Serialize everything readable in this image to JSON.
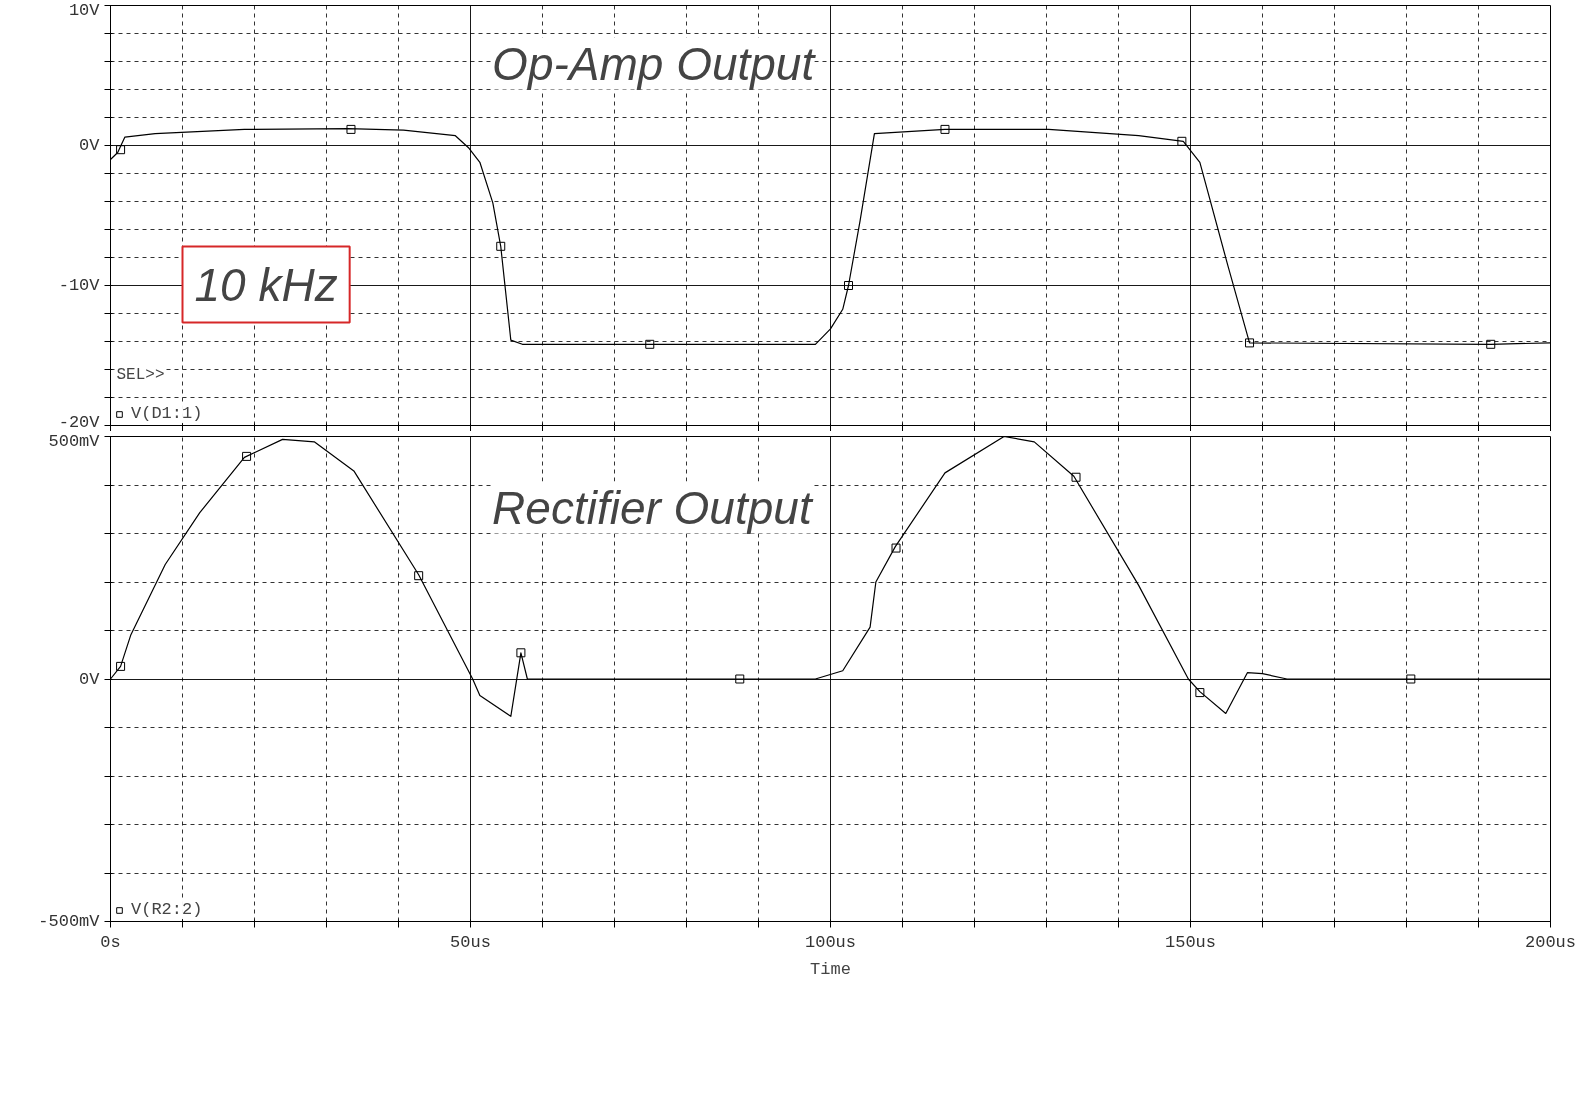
{
  "chart_data": [
    {
      "type": "line",
      "annotations": [
        "Op-Amp Output",
        "10 kHz",
        "SEL>>"
      ],
      "xlim": [
        0,
        200
      ],
      "ylim": [
        -20,
        10
      ],
      "tick_labels": "y",
      "grid": true,
      "legend": "bottom left",
      "xticks": [
        {
          "value": 0,
          "label": null
        },
        {
          "value": 10,
          "label": null
        },
        {
          "value": 20,
          "label": null
        },
        {
          "value": 30,
          "label": null
        },
        {
          "value": 40,
          "label": null
        },
        {
          "value": 50,
          "label": null
        },
        {
          "value": 60,
          "label": null
        },
        {
          "value": 70,
          "label": null
        },
        {
          "value": 80,
          "label": null
        },
        {
          "value": 90,
          "label": null
        },
        {
          "value": 100,
          "label": null
        },
        {
          "value": 110,
          "label": null
        },
        {
          "value": 120,
          "label": null
        },
        {
          "value": 130,
          "label": null
        },
        {
          "value": 140,
          "label": null
        },
        {
          "value": 150,
          "label": null
        },
        {
          "value": 160,
          "label": null
        },
        {
          "value": 170,
          "label": null
        },
        {
          "value": 180,
          "label": null
        },
        {
          "value": 190,
          "label": null
        },
        {
          "value": 200,
          "label": null
        }
      ],
      "yticks": [
        {
          "value": 10,
          "label": "10V"
        },
        {
          "value": 8,
          "label": null
        },
        {
          "value": 6,
          "label": null
        },
        {
          "value": 4,
          "label": null
        },
        {
          "value": 2,
          "label": null
        },
        {
          "value": 0,
          "label": "0V"
        },
        {
          "value": -2,
          "label": null
        },
        {
          "value": -4,
          "label": null
        },
        {
          "value": -6,
          "label": null
        },
        {
          "value": -8,
          "label": null
        },
        {
          "value": -10,
          "label": "-10V"
        },
        {
          "value": -12,
          "label": null
        },
        {
          "value": -14,
          "label": null
        },
        {
          "value": -16,
          "label": null
        },
        {
          "value": -18,
          "label": null
        },
        {
          "value": -20,
          "label": "-20V"
        }
      ],
      "series": [
        {
          "type": "line",
          "color": "#000000",
          "marker": "none",
          "x": [
            0,
            1,
            2,
            6.2,
            18.6,
            33,
            40.7,
            47.9,
            49.8,
            51.3,
            53.1,
            54.2,
            55.6,
            57.2,
            97.9,
            100,
            101.7,
            102.5,
            104.1,
            106.1,
            115.9,
            130.3,
            142.8,
            149,
            151.3,
            155.2,
            158.2,
            191.7,
            200
          ],
          "values": [
            -1.0,
            -0.5,
            0.6,
            0.85,
            1.15,
            1.2,
            1.1,
            0.7,
            -0.2,
            -1.2,
            -4.1,
            -7.2,
            -13.9,
            -14.2,
            -14.2,
            -13.1,
            -11.7,
            -10,
            -5.4,
            0.85,
            1.15,
            1.15,
            0.7,
            0.3,
            -1.2,
            -8.6,
            -14.1,
            -14.2,
            -14.1
          ]
        },
        {
          "type": "scatter",
          "name": "V(D1:1)",
          "color": "#000000",
          "marker": "square",
          "x": [
            1.4,
            33.4,
            54.2,
            74.9,
            102.5,
            115.9,
            148.8,
            158.2,
            191.7
          ],
          "values": [
            -0.3,
            1.15,
            -7.2,
            -14.2,
            -10,
            1.15,
            0.3,
            -14.1,
            -14.2
          ]
        }
      ]
    },
    {
      "type": "line",
      "annotations": [
        "Rectifier Output"
      ],
      "xlabel": "Time",
      "xlim": [
        0,
        200
      ],
      "ylim": [
        -500,
        500
      ],
      "grid": true,
      "legend": "bottom left",
      "xticks": [
        {
          "value": 0,
          "label": "0s"
        },
        {
          "value": 10,
          "label": null
        },
        {
          "value": 20,
          "label": null
        },
        {
          "value": 30,
          "label": null
        },
        {
          "value": 40,
          "label": null
        },
        {
          "value": 50,
          "label": "50us"
        },
        {
          "value": 60,
          "label": null
        },
        {
          "value": 70,
          "label": null
        },
        {
          "value": 80,
          "label": null
        },
        {
          "value": 90,
          "label": null
        },
        {
          "value": 100,
          "label": "100us"
        },
        {
          "value": 110,
          "label": null
        },
        {
          "value": 120,
          "label": null
        },
        {
          "value": 130,
          "label": null
        },
        {
          "value": 140,
          "label": null
        },
        {
          "value": 150,
          "label": "150us"
        },
        {
          "value": 160,
          "label": null
        },
        {
          "value": 170,
          "label": null
        },
        {
          "value": 180,
          "label": null
        },
        {
          "value": 190,
          "label": null
        },
        {
          "value": 200,
          "label": "200us"
        }
      ],
      "yticks": [
        {
          "value": 500,
          "label": "500mV"
        },
        {
          "value": 400,
          "label": null
        },
        {
          "value": 300,
          "label": null
        },
        {
          "value": 200,
          "label": null
        },
        {
          "value": 100,
          "label": null
        },
        {
          "value": 0,
          "label": "0V"
        },
        {
          "value": -100,
          "label": null
        },
        {
          "value": -200,
          "label": null
        },
        {
          "value": -300,
          "label": null
        },
        {
          "value": -400,
          "label": null
        },
        {
          "value": -500,
          "label": "-500mV"
        }
      ],
      "series": [
        {
          "type": "line",
          "color": "#000000",
          "marker": "none",
          "x": [
            0,
            1.4,
            2.8,
            7.6,
            12.4,
            18.6,
            23.9,
            28.3,
            33.8,
            42.8,
            50.3,
            51.3,
            55.6,
            57,
            57.9,
            97.9,
            101.7,
            105.5,
            106.3,
            109,
            115.9,
            124.1,
            128.3,
            133.8,
            142.8,
            149.7,
            151.3,
            154.9,
            157.9,
            160,
            163.4,
            200
          ],
          "values": [
            0,
            26,
            90,
            236,
            343,
            457,
            494,
            489,
            429,
            215,
            0,
            -34,
            -77,
            54,
            0,
            0,
            17,
            107,
            200,
            273,
            425,
            500,
            489,
            418,
            193,
            0,
            -26,
            -71,
            13,
            11,
            0,
            0
          ]
        },
        {
          "type": "scatter",
          "name": "V(R2:2)",
          "color": "#000000",
          "marker": "square",
          "x": [
            1.4,
            18.9,
            42.8,
            57,
            87.4,
            109.1,
            134.1,
            151.3,
            180.6
          ],
          "values": [
            26,
            459,
            213,
            54,
            0,
            270,
            416,
            -28,
            0
          ]
        }
      ]
    }
  ]
}
